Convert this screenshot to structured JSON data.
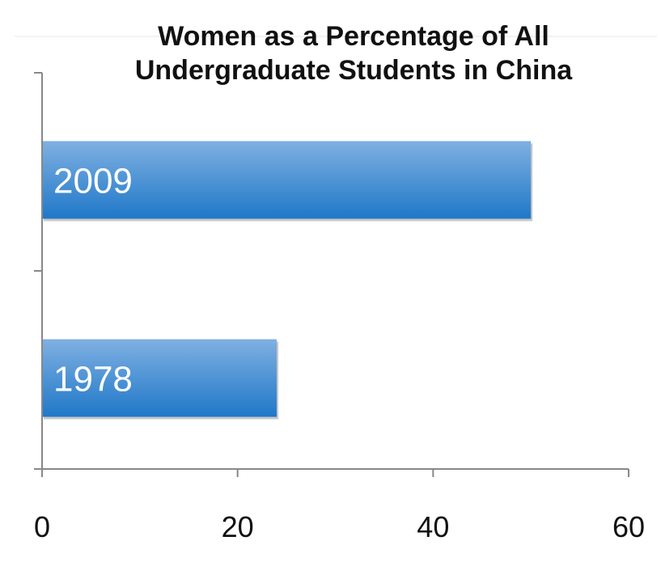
{
  "chart_data": {
    "type": "bar",
    "orientation": "horizontal",
    "title": "Women as a Percentage of All Undergraduate Students in China",
    "title_lines": [
      "Women as a Percentage of All",
      "Undergraduate Students in China"
    ],
    "categories": [
      "2009",
      "1978"
    ],
    "values": [
      50,
      24
    ],
    "xlim": [
      0,
      60
    ],
    "xticks": [
      0,
      20,
      40,
      60
    ],
    "xlabel": "",
    "ylabel": "",
    "grid": false,
    "legend": "none",
    "bar_label_position": "inside-left",
    "colors": {
      "bar_top": "#7fb0e2",
      "bar_bottom": "#1f78c8",
      "axis": "#888888",
      "title": "#111111"
    }
  }
}
